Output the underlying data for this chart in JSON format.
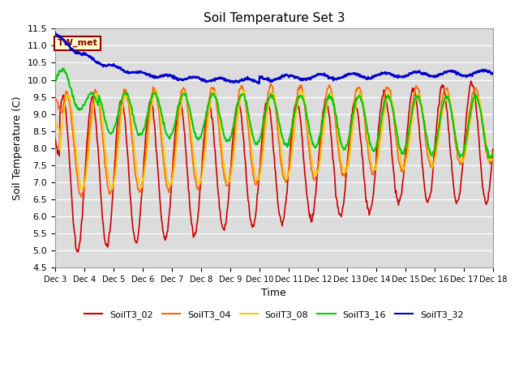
{
  "title": "Soil Temperature Set 3",
  "xlabel": "Time",
  "ylabel": "Soil Temperature (C)",
  "ylim": [
    4.5,
    11.5
  ],
  "yticks": [
    4.5,
    5.0,
    5.5,
    6.0,
    6.5,
    7.0,
    7.5,
    8.0,
    8.5,
    9.0,
    9.5,
    10.0,
    10.5,
    11.0,
    11.5
  ],
  "colors": {
    "SoilT3_02": "#cc0000",
    "SoilT3_04": "#ff6600",
    "SoilT3_08": "#ffcc00",
    "SoilT3_16": "#00cc00",
    "SoilT3_32": "#0000cc"
  },
  "bg_color": "#dcdcdc",
  "annotation": "TW_met",
  "annotation_color": "#8b0000",
  "annotation_bg": "#ffffcc",
  "n_days": 15,
  "start_day": 3
}
